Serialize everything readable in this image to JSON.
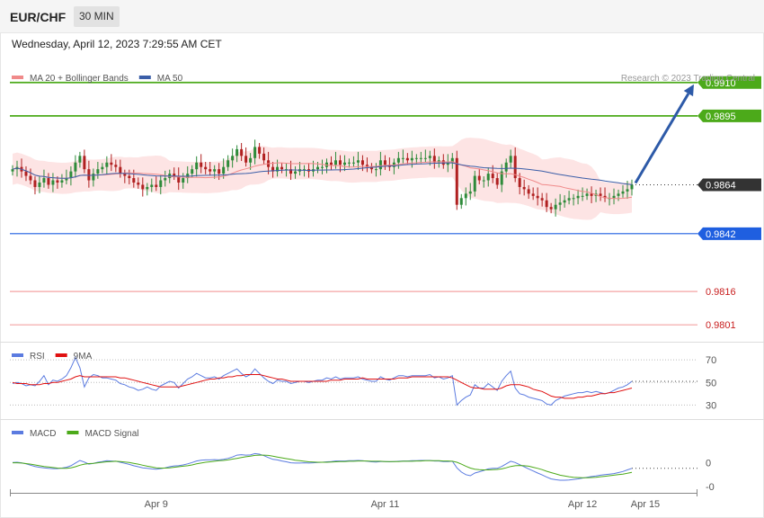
{
  "header": {
    "symbol": "EUR/CHF",
    "timeframe": "30 MIN"
  },
  "datetime": "Wednesday, April 12, 2023 7:29:55 AM CET",
  "colors": {
    "accent_green": "#4caa1a",
    "accent_blue": "#1f5fe0",
    "accent_red": "#f4a3a3",
    "current": "#333333",
    "bull": "#2e8b3a",
    "bear": "#b02020",
    "ma20": "#f08a8a",
    "ma50": "#3b5ea8",
    "bb_fill": "#fde4e4",
    "rsi": "#5b7be0",
    "rsi_ma": "#e01010",
    "macd": "#5b7be0",
    "macd_signal": "#4caa1a",
    "arrow": "#2d5aa8"
  },
  "chart_data": [
    {
      "type": "line",
      "panel": "price",
      "legend": [
        {
          "name": "MA 20 + Bollinger Bands",
          "color": "#f08a8a"
        },
        {
          "name": "MA 50",
          "color": "#3b5ea8"
        }
      ],
      "watermark": "Research © 2023 Trading Central",
      "ylim": [
        0.9795,
        0.9918
      ],
      "levels": [
        {
          "value": 0.991,
          "label": "0.9910",
          "role": "resistance",
          "color": "#4caa1a"
        },
        {
          "value": 0.9895,
          "label": "0.9895",
          "role": "resistance",
          "color": "#4caa1a"
        },
        {
          "value": 0.9864,
          "label": "0.9864",
          "role": "current",
          "color": "#333333"
        },
        {
          "value": 0.9842,
          "label": "0.9842",
          "role": "pivot",
          "color": "#1f5fe0"
        },
        {
          "value": 0.9816,
          "label": "0.9816",
          "role": "support",
          "color": "#f4a3a3"
        },
        {
          "value": 0.9801,
          "label": "0.9801",
          "role": "support",
          "color": "#f4a3a3"
        }
      ],
      "x_labels": [
        "Apr 9",
        "Apr 11",
        "Apr 12",
        "Apr 15"
      ],
      "x_label_index": [
        32,
        83,
        127,
        141
      ],
      "closes": [
        0.9871,
        0.9872,
        0.987,
        0.9868,
        0.9866,
        0.9863,
        0.9865,
        0.9867,
        0.9864,
        0.9866,
        0.9865,
        0.9866,
        0.9867,
        0.987,
        0.9874,
        0.9877,
        0.9871,
        0.9866,
        0.9869,
        0.9871,
        0.9872,
        0.9874,
        0.9873,
        0.9872,
        0.9869,
        0.9868,
        0.9867,
        0.9865,
        0.9864,
        0.9862,
        0.9863,
        0.9864,
        0.9863,
        0.9866,
        0.9867,
        0.9869,
        0.9868,
        0.9865,
        0.9867,
        0.9869,
        0.9871,
        0.9874,
        0.9872,
        0.9871,
        0.987,
        0.9871,
        0.9869,
        0.9872,
        0.9875,
        0.9877,
        0.988,
        0.9877,
        0.9874,
        0.9876,
        0.9881,
        0.9878,
        0.9875,
        0.9872,
        0.987,
        0.9872,
        0.9871,
        0.9871,
        0.9869,
        0.987,
        0.9871,
        0.9871,
        0.987,
        0.9871,
        0.9872,
        0.9872,
        0.9874,
        0.9873,
        0.9875,
        0.9873,
        0.9874,
        0.9874,
        0.9874,
        0.9875,
        0.9873,
        0.9872,
        0.9871,
        0.9871,
        0.9875,
        0.9873,
        0.9872,
        0.9874,
        0.9876,
        0.9876,
        0.9875,
        0.9876,
        0.9876,
        0.9876,
        0.9876,
        0.9877,
        0.9874,
        0.9875,
        0.9873,
        0.9874,
        0.9876,
        0.9855,
        0.9858,
        0.986,
        0.9861,
        0.9868,
        0.9866,
        0.9866,
        0.9869,
        0.9867,
        0.9864,
        0.987,
        0.9874,
        0.9877,
        0.9867,
        0.9863,
        0.9862,
        0.986,
        0.9859,
        0.9858,
        0.9857,
        0.9854,
        0.9853,
        0.9855,
        0.9856,
        0.9857,
        0.9858,
        0.9858,
        0.9859,
        0.9859,
        0.986,
        0.9859,
        0.986,
        0.9859,
        0.9858,
        0.9858,
        0.9859,
        0.986,
        0.9861,
        0.9862,
        0.9864
      ]
    },
    {
      "type": "line",
      "panel": "rsi",
      "legend": [
        {
          "name": "RSI",
          "color": "#5b7be0"
        },
        {
          "name": "9MA",
          "color": "#e01010"
        }
      ],
      "ticks": [
        "70",
        "50",
        "30"
      ],
      "ylim": [
        20,
        82
      ],
      "series": [
        {
          "name": "RSI",
          "values": [
            49,
            50,
            49,
            47,
            48,
            47,
            51,
            56,
            48,
            52,
            51,
            53,
            56,
            63,
            72,
            63,
            46,
            54,
            57,
            56,
            54,
            54,
            53,
            52,
            49,
            48,
            46,
            45,
            43,
            44,
            46,
            44,
            43,
            47,
            49,
            51,
            50,
            45,
            49,
            53,
            55,
            58,
            56,
            54,
            54,
            55,
            53,
            56,
            58,
            60,
            62,
            58,
            55,
            57,
            62,
            58,
            54,
            51,
            49,
            52,
            51,
            51,
            49,
            50,
            51,
            51,
            50,
            51,
            52,
            52,
            54,
            53,
            55,
            53,
            54,
            54,
            54,
            55,
            53,
            52,
            51,
            51,
            55,
            53,
            52,
            54,
            56,
            56,
            55,
            56,
            56,
            56,
            56,
            57,
            54,
            55,
            53,
            54,
            56,
            30,
            34,
            37,
            39,
            48,
            45,
            45,
            49,
            46,
            43,
            51,
            56,
            60,
            45,
            40,
            39,
            37,
            36,
            35,
            34,
            31,
            30,
            34,
            36,
            38,
            39,
            40,
            41,
            41,
            42,
            41,
            42,
            41,
            40,
            41,
            43,
            45,
            46,
            48,
            51
          ]
        },
        {
          "name": "9MA",
          "values": [
            50,
            49,
            49,
            49,
            48,
            48,
            48,
            49,
            49,
            50,
            50,
            51,
            52,
            53,
            55,
            56,
            55,
            55,
            55,
            55,
            55,
            55,
            55,
            55,
            54,
            54,
            53,
            52,
            51,
            50,
            49,
            48,
            47,
            46,
            46,
            46,
            46,
            46,
            47,
            48,
            49,
            50,
            51,
            52,
            53,
            53,
            54,
            54,
            55,
            55,
            56,
            56,
            57,
            57,
            57,
            57,
            56,
            55,
            54,
            53,
            53,
            52,
            51,
            51,
            51,
            51,
            51,
            51,
            51,
            51,
            51,
            52,
            52,
            52,
            53,
            53,
            53,
            53,
            54,
            53,
            53,
            53,
            53,
            53,
            53,
            53,
            54,
            54,
            54,
            55,
            55,
            55,
            55,
            55,
            55,
            55,
            55,
            55,
            54,
            52,
            50,
            48,
            46,
            45,
            45,
            44,
            44,
            44,
            44,
            45,
            47,
            48,
            48,
            48,
            47,
            46,
            44,
            43,
            42,
            40,
            38,
            37,
            37,
            36,
            36,
            36,
            37,
            37,
            38,
            38,
            39,
            40,
            40,
            41,
            41,
            42,
            43,
            44,
            45
          ]
        }
      ]
    },
    {
      "type": "line",
      "panel": "macd",
      "legend": [
        {
          "name": "MACD",
          "color": "#5b7be0"
        },
        {
          "name": "MACD Signal",
          "color": "#4caa1a"
        }
      ],
      "ticks": [
        "0",
        "-0"
      ],
      "ylim": [
        -0.00115,
        0.0009
      ],
      "series": [
        {
          "name": "MACD",
          "values": [
            0.0,
            1e-05,
            -1e-05,
            -5e-05,
            -0.0001,
            -0.00015,
            -0.00018,
            -0.0002,
            -0.00022,
            -0.00023,
            -0.00023,
            -0.00021,
            -0.00018,
            -0.00012,
            -2e-05,
            8e-05,
            2e-05,
            -6e-05,
            -3e-05,
            1e-05,
            4e-05,
            7e-05,
            6e-05,
            5e-05,
            1e-05,
            -3e-05,
            -7e-05,
            -0.00012,
            -0.00016,
            -0.0002,
            -0.00022,
            -0.00024,
            -0.00025,
            -0.00023,
            -0.0002,
            -0.00016,
            -0.00013,
            -0.00012,
            -9e-05,
            -5e-05,
            0.0,
            6e-05,
            9e-05,
            0.0001,
            0.0001,
            0.00011,
            0.0001,
            0.00012,
            0.00016,
            0.00021,
            0.00028,
            0.0003,
            0.00028,
            0.00029,
            0.00034,
            0.00032,
            0.00026,
            0.00019,
            0.00012,
            0.0001,
            6e-05,
            3e-05,
            -1e-05,
            -2e-05,
            -2e-05,
            -1e-05,
            -2e-05,
            -1e-05,
            0.0,
            1e-05,
            3e-05,
            4e-05,
            6e-05,
            6e-05,
            6e-05,
            7e-05,
            7e-05,
            8e-05,
            7e-05,
            5e-05,
            3e-05,
            2e-05,
            4e-05,
            4e-05,
            3e-05,
            4e-05,
            5e-05,
            6e-05,
            6e-05,
            7e-05,
            7e-05,
            8e-05,
            8e-05,
            8e-05,
            6e-05,
            6e-05,
            4e-05,
            4e-05,
            5e-05,
            -0.0002,
            -0.00036,
            -0.00046,
            -0.0005,
            -0.0004,
            -0.00035,
            -0.0003,
            -0.00024,
            -0.00022,
            -0.00022,
            -0.00015,
            -5e-05,
            5e-05,
            0.0,
            -8e-05,
            -0.00016,
            -0.00024,
            -0.00032,
            -0.0004,
            -0.00047,
            -0.00055,
            -0.00062,
            -0.00065,
            -0.00067,
            -0.00067,
            -0.00066,
            -0.00064,
            -0.00062,
            -0.00059,
            -0.00056,
            -0.00053,
            -0.00051,
            -0.00048,
            -0.00046,
            -0.00044,
            -0.00042,
            -0.00038,
            -0.00034,
            -0.00028,
            -0.00022
          ]
        },
        {
          "name": "MACD Signal",
          "values": [
            -1e-05,
            -1e-05,
            -2e-05,
            -4e-05,
            -6e-05,
            -9e-05,
            -0.00012,
            -0.00015,
            -0.00017,
            -0.00019,
            -0.00021,
            -0.00022,
            -0.00022,
            -0.0002,
            -0.00016,
            -0.0001,
            -6e-05,
            -4e-05,
            -3e-05,
            -1e-05,
            1e-05,
            3e-05,
            4e-05,
            5e-05,
            4e-05,
            2e-05,
            0.0,
            -3e-05,
            -6e-05,
            -0.0001,
            -0.00014,
            -0.00017,
            -0.0002,
            -0.00021,
            -0.00021,
            -0.0002,
            -0.00018,
            -0.00016,
            -0.00014,
            -0.00012,
            -9e-05,
            -5e-05,
            -2e-05,
            1e-05,
            3e-05,
            5e-05,
            7e-05,
            8e-05,
            0.0001,
            0.00013,
            0.00016,
            0.00019,
            0.00022,
            0.00024,
            0.00027,
            0.00028,
            0.00028,
            0.00027,
            0.00024,
            0.00021,
            0.00018,
            0.00015,
            0.00012,
            9e-05,
            7e-05,
            5e-05,
            3e-05,
            2e-05,
            1e-05,
            1e-05,
            1e-05,
            2e-05,
            3e-05,
            4e-05,
            4e-05,
            5e-05,
            5e-05,
            6e-05,
            6e-05,
            6e-05,
            5e-05,
            5e-05,
            5e-05,
            4e-05,
            4e-05,
            4e-05,
            4e-05,
            5e-05,
            5e-05,
            5e-05,
            6e-05,
            6e-05,
            7e-05,
            7e-05,
            7e-05,
            7e-05,
            6e-05,
            6e-05,
            5e-05,
            1e-05,
            -6e-05,
            -0.00014,
            -0.00021,
            -0.00025,
            -0.00027,
            -0.00028,
            -0.00028,
            -0.00027,
            -0.00026,
            -0.00024,
            -0.0002,
            -0.00015,
            -0.00012,
            -0.00011,
            -0.00012,
            -0.00014,
            -0.00018,
            -0.00022,
            -0.00027,
            -0.00033,
            -0.00038,
            -0.00043,
            -0.00048,
            -0.00051,
            -0.00054,
            -0.00056,
            -0.00057,
            -0.00058,
            -0.00058,
            -0.00057,
            -0.00056,
            -0.00054,
            -0.00052,
            -0.0005,
            -0.00048,
            -0.00046,
            -0.00044,
            -0.00041,
            -0.00037
          ]
        }
      ]
    }
  ]
}
